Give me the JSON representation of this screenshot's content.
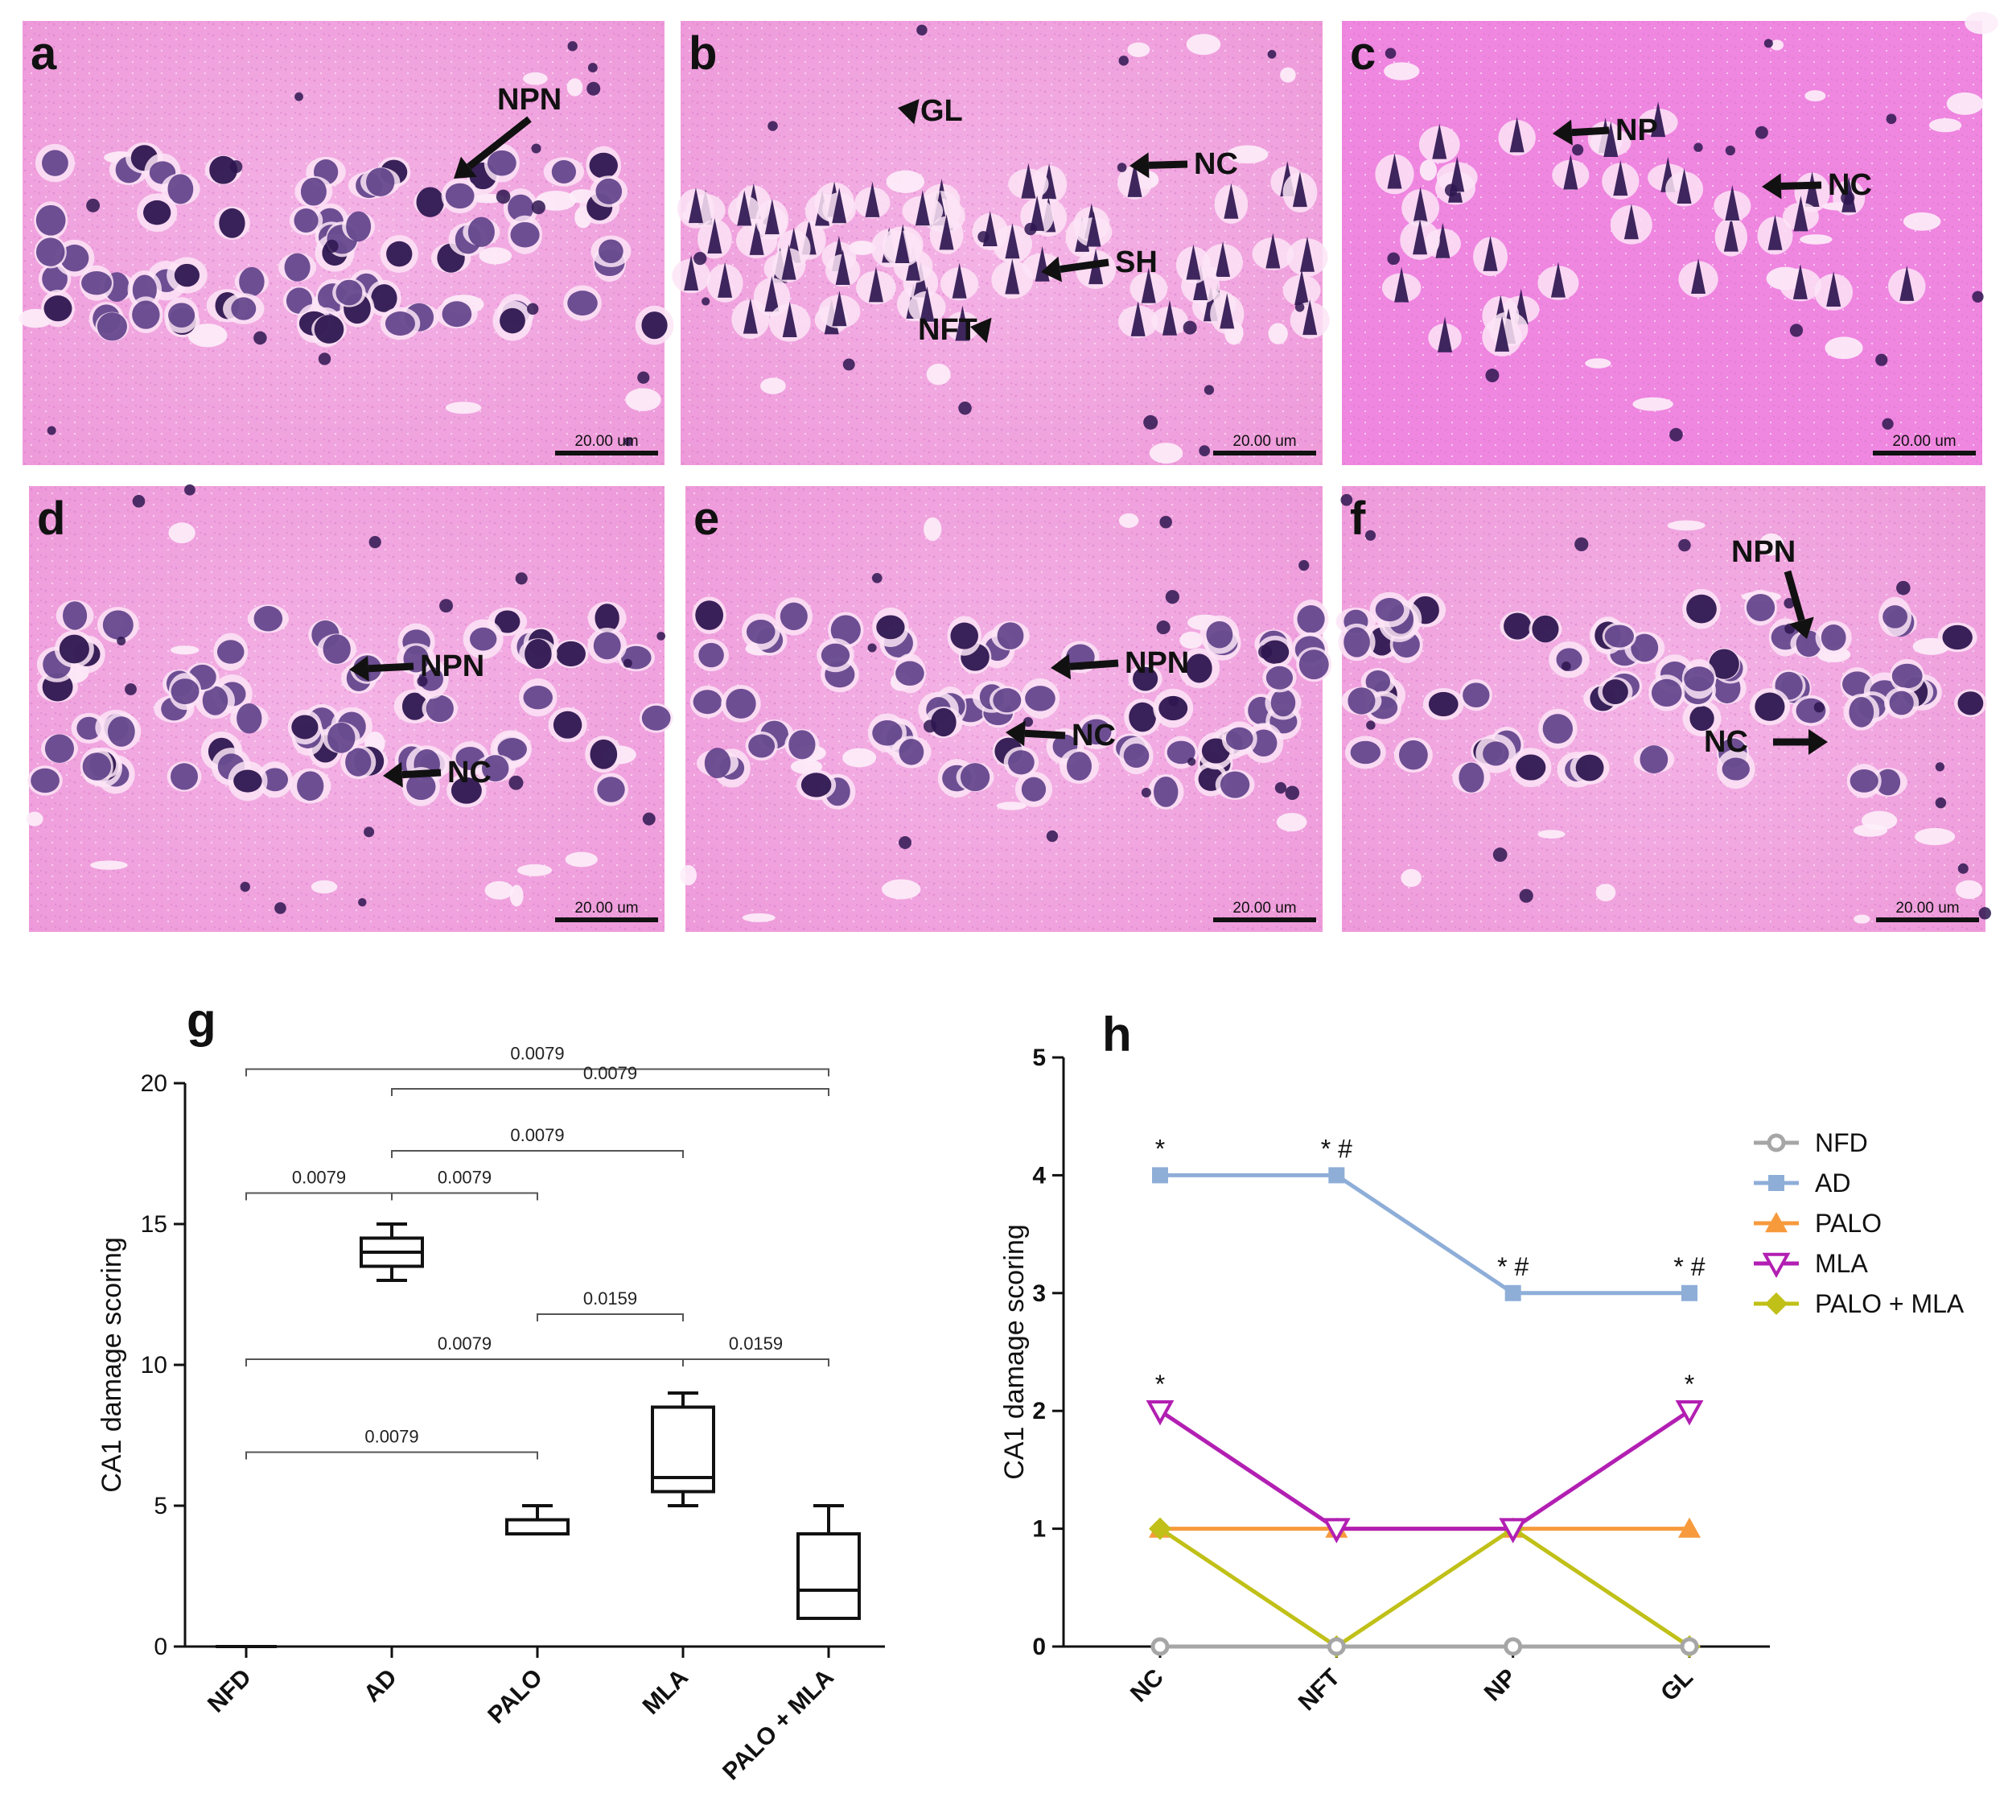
{
  "colors": {
    "tissue_bg": "#f2a4e0",
    "tissue_mid": "#e884d6",
    "nucleus": "#4a2a7a",
    "nucleus_dark": "#2e1650",
    "arrow": "#111111",
    "NFD": "#a6a6a6",
    "AD": "#8eaed8",
    "PALO": "#f79a3c",
    "MLA": "#b21fb2",
    "PALO_MLA": "#c0c018"
  },
  "micrographs": [
    {
      "letter": "a",
      "scale_bar": "20.00 um",
      "labels": [
        "NPN"
      ]
    },
    {
      "letter": "b",
      "scale_bar": "20.00 um",
      "labels": [
        "GL",
        "NC",
        "SH",
        "NFT"
      ]
    },
    {
      "letter": "c",
      "scale_bar": "20.00 um",
      "labels": [
        "NP",
        "NC"
      ]
    },
    {
      "letter": "d",
      "scale_bar": "20.00 um",
      "labels": [
        "NPN",
        "NC"
      ]
    },
    {
      "letter": "e",
      "scale_bar": "20.00 um",
      "labels": [
        "NPN",
        "NC"
      ]
    },
    {
      "letter": "f",
      "scale_bar": "20.00 um",
      "labels": [
        "NPN",
        "NC"
      ]
    }
  ],
  "chart_data": [
    {
      "panel": "g",
      "type": "box",
      "title": "",
      "xlabel": "",
      "ylabel": "CA1 damage scoring",
      "ylim": [
        0,
        20
      ],
      "yticks": [
        0,
        5,
        10,
        15,
        20
      ],
      "categories": [
        "NFD",
        "AD",
        "PALO",
        "MLA",
        "PALO + MLA"
      ],
      "boxes": [
        {
          "category": "NFD",
          "min": 0,
          "q1": 0,
          "median": 0,
          "q3": 0,
          "max": 0
        },
        {
          "category": "AD",
          "min": 13,
          "q1": 13.5,
          "median": 14,
          "q3": 14.5,
          "max": 15
        },
        {
          "category": "PALO",
          "min": 4,
          "q1": 4,
          "median": 4,
          "q3": 4.5,
          "max": 5
        },
        {
          "category": "MLA",
          "min": 5,
          "q1": 5.5,
          "median": 6,
          "q3": 8.5,
          "max": 9
        },
        {
          "category": "PALO + MLA",
          "min": 1,
          "q1": 1,
          "median": 2,
          "q3": 4,
          "max": 5
        }
      ],
      "comparisons": [
        {
          "from": "NFD",
          "to": "PALO + MLA",
          "p": "0.0079",
          "y": 20.5
        },
        {
          "from": "AD",
          "to": "PALO + MLA",
          "p": "0.0079",
          "y": 19.8
        },
        {
          "from": "AD",
          "to": "MLA",
          "p": "0.0079",
          "y": 17.6
        },
        {
          "from": "NFD",
          "to": "AD",
          "p": "0.0079",
          "y": 16.1
        },
        {
          "from": "AD",
          "to": "PALO",
          "p": "0.0079",
          "y": 16.1
        },
        {
          "from": "PALO",
          "to": "MLA",
          "p": "0.0159",
          "y": 11.8
        },
        {
          "from": "NFD",
          "to": "MLA",
          "p": "0.0079",
          "y": 10.2
        },
        {
          "from": "MLA",
          "to": "PALO + MLA",
          "p": "0.0159",
          "y": 10.2
        },
        {
          "from": "NFD",
          "to": "PALO",
          "p": "0.0079",
          "y": 6.9
        }
      ]
    },
    {
      "panel": "h",
      "type": "line",
      "title": "",
      "xlabel": "",
      "ylabel": "CA1 damage scoring",
      "ylim": [
        0,
        5
      ],
      "yticks": [
        0,
        1,
        2,
        3,
        4,
        5
      ],
      "categories": [
        "NC",
        "NFT",
        "NP",
        "GL"
      ],
      "legend_position": "right",
      "series": [
        {
          "name": "NFD",
          "marker": "circle",
          "color": "#a6a6a6",
          "values": [
            0,
            0,
            0,
            0
          ]
        },
        {
          "name": "AD",
          "marker": "square",
          "color": "#8eaed8",
          "values": [
            4,
            4,
            3,
            3
          ]
        },
        {
          "name": "PALO",
          "marker": "triangle-up",
          "color": "#f79a3c",
          "values": [
            1,
            1,
            1,
            1
          ]
        },
        {
          "name": "MLA",
          "marker": "triangle-down",
          "color": "#b21fb2",
          "values": [
            2,
            1,
            1,
            2
          ]
        },
        {
          "name": "PALO + MLA",
          "marker": "diamond",
          "color": "#c0c018",
          "values": [
            1,
            0,
            1,
            0
          ]
        }
      ],
      "annotations": [
        {
          "category": "NC",
          "y": 4,
          "text": "*"
        },
        {
          "category": "NFT",
          "y": 4,
          "text": "* #"
        },
        {
          "category": "NP",
          "y": 3,
          "text": "* #"
        },
        {
          "category": "GL",
          "y": 3,
          "text": "* #"
        },
        {
          "category": "NC",
          "y": 2,
          "text": "*"
        },
        {
          "category": "GL",
          "y": 2,
          "text": "*"
        }
      ]
    }
  ]
}
